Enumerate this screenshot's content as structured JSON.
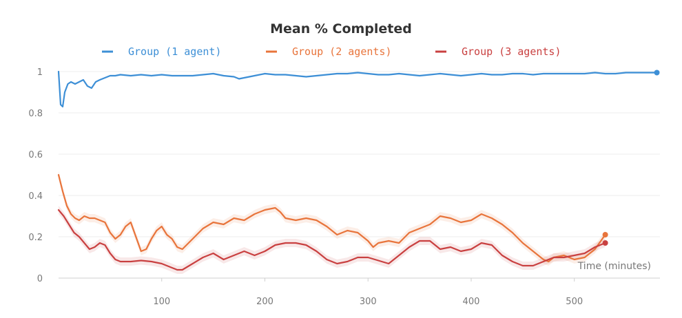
{
  "chart_data": {
    "type": "line",
    "title": "Mean % Completed",
    "xlabel": "Time (minutes)",
    "ylabel": "",
    "xlim": [
      0,
      583
    ],
    "ylim": [
      0,
      1
    ],
    "x_ticks": [
      100,
      200,
      300,
      400,
      500
    ],
    "y_ticks": [
      0,
      0.2,
      0.4,
      0.6,
      0.8,
      1
    ],
    "y_tick_labels": [
      "0",
      "0.2",
      "0.4",
      "0.6",
      "0.8",
      "1"
    ],
    "x_tick_labels": [
      "100",
      "200",
      "300",
      "400",
      "500"
    ],
    "grid": true,
    "legend_position": "top-center",
    "series": [
      {
        "name": "Group (1 agent)",
        "color": "#3d8fd6",
        "band": 0.004,
        "x": [
          0,
          2,
          4,
          6,
          9,
          12,
          16,
          20,
          24,
          28,
          32,
          36,
          40,
          45,
          50,
          55,
          60,
          70,
          80,
          90,
          100,
          110,
          120,
          130,
          140,
          150,
          160,
          170,
          175,
          180,
          190,
          200,
          210,
          220,
          230,
          240,
          250,
          260,
          270,
          280,
          290,
          300,
          310,
          320,
          330,
          340,
          350,
          360,
          370,
          380,
          390,
          400,
          410,
          420,
          430,
          440,
          450,
          460,
          470,
          480,
          490,
          500,
          510,
          520,
          530,
          540,
          550,
          560,
          570,
          580
        ],
        "y": [
          1.0,
          0.84,
          0.83,
          0.9,
          0.94,
          0.95,
          0.94,
          0.95,
          0.96,
          0.93,
          0.92,
          0.95,
          0.96,
          0.97,
          0.98,
          0.98,
          0.985,
          0.98,
          0.985,
          0.98,
          0.985,
          0.98,
          0.98,
          0.98,
          0.985,
          0.99,
          0.98,
          0.975,
          0.965,
          0.97,
          0.98,
          0.99,
          0.985,
          0.985,
          0.98,
          0.975,
          0.98,
          0.985,
          0.99,
          0.99,
          0.995,
          0.99,
          0.985,
          0.985,
          0.99,
          0.985,
          0.98,
          0.985,
          0.99,
          0.985,
          0.98,
          0.985,
          0.99,
          0.985,
          0.985,
          0.99,
          0.99,
          0.985,
          0.99,
          0.99,
          0.99,
          0.99,
          0.99,
          0.995,
          0.99,
          0.99,
          0.995,
          0.995,
          0.995,
          0.995
        ]
      },
      {
        "name": "Group (2 agents)",
        "color": "#e8743b",
        "band": 0.02,
        "x": [
          0,
          4,
          8,
          12,
          16,
          20,
          25,
          30,
          35,
          40,
          45,
          50,
          55,
          60,
          65,
          70,
          75,
          80,
          85,
          90,
          95,
          100,
          105,
          110,
          115,
          120,
          130,
          140,
          150,
          160,
          170,
          180,
          190,
          200,
          210,
          215,
          220,
          230,
          240,
          250,
          260,
          270,
          280,
          290,
          300,
          305,
          310,
          320,
          330,
          340,
          350,
          360,
          370,
          380,
          390,
          400,
          410,
          420,
          430,
          440,
          450,
          460,
          470,
          475,
          480,
          490,
          500,
          510,
          520,
          530
        ],
        "y": [
          0.5,
          0.42,
          0.35,
          0.31,
          0.29,
          0.28,
          0.3,
          0.29,
          0.29,
          0.28,
          0.27,
          0.22,
          0.19,
          0.21,
          0.25,
          0.27,
          0.2,
          0.13,
          0.14,
          0.19,
          0.23,
          0.25,
          0.21,
          0.19,
          0.15,
          0.14,
          0.19,
          0.24,
          0.27,
          0.26,
          0.29,
          0.28,
          0.31,
          0.33,
          0.34,
          0.32,
          0.29,
          0.28,
          0.29,
          0.28,
          0.25,
          0.21,
          0.23,
          0.22,
          0.18,
          0.15,
          0.17,
          0.18,
          0.17,
          0.22,
          0.24,
          0.26,
          0.3,
          0.29,
          0.27,
          0.28,
          0.31,
          0.29,
          0.26,
          0.22,
          0.17,
          0.13,
          0.09,
          0.08,
          0.1,
          0.11,
          0.09,
          0.1,
          0.14,
          0.21
        ]
      },
      {
        "name": "Group (3 agents)",
        "color": "#c94040",
        "band": 0.02,
        "x": [
          0,
          5,
          10,
          15,
          20,
          25,
          30,
          35,
          40,
          45,
          50,
          55,
          60,
          70,
          80,
          90,
          100,
          110,
          115,
          120,
          130,
          140,
          150,
          160,
          170,
          180,
          190,
          200,
          210,
          220,
          230,
          240,
          250,
          260,
          270,
          280,
          290,
          300,
          310,
          320,
          330,
          340,
          350,
          360,
          370,
          380,
          390,
          400,
          410,
          420,
          430,
          440,
          450,
          460,
          470,
          480,
          490,
          500,
          510,
          520,
          530
        ],
        "y": [
          0.33,
          0.3,
          0.26,
          0.22,
          0.2,
          0.17,
          0.14,
          0.15,
          0.17,
          0.16,
          0.12,
          0.09,
          0.08,
          0.08,
          0.085,
          0.08,
          0.07,
          0.05,
          0.04,
          0.04,
          0.07,
          0.1,
          0.12,
          0.09,
          0.11,
          0.13,
          0.11,
          0.13,
          0.16,
          0.17,
          0.17,
          0.16,
          0.13,
          0.09,
          0.07,
          0.08,
          0.1,
          0.1,
          0.085,
          0.07,
          0.11,
          0.15,
          0.18,
          0.18,
          0.14,
          0.15,
          0.13,
          0.14,
          0.17,
          0.16,
          0.11,
          0.08,
          0.06,
          0.06,
          0.08,
          0.1,
          0.1,
          0.11,
          0.12,
          0.15,
          0.17
        ]
      }
    ]
  }
}
